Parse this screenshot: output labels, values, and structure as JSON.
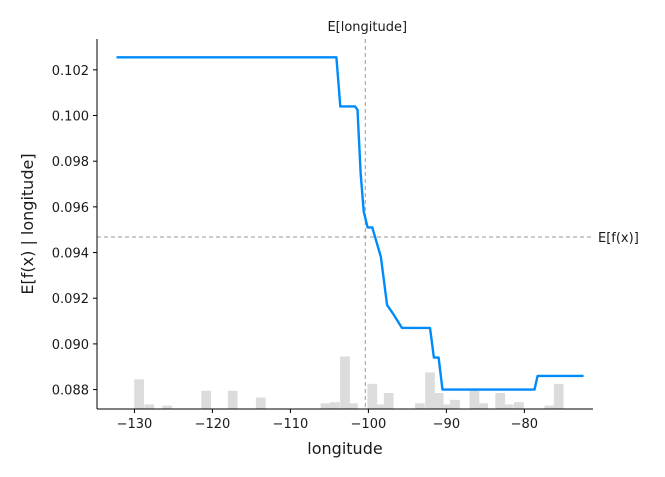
{
  "chart_data": {
    "type": "line",
    "xlabel": "longitude",
    "ylabel": "E[f(x) | longitude]",
    "xlim": [
      -134.8,
      -71.2
    ],
    "ylim": [
      0.08715,
      0.10335
    ],
    "xticks": [
      -130,
      -120,
      -110,
      -100,
      -90,
      -80
    ],
    "xtick_labels": [
      "−130",
      "−120",
      "−110",
      "−100",
      "−90",
      "−80"
    ],
    "yticks": [
      0.088,
      0.09,
      0.092,
      0.094,
      0.096,
      0.098,
      0.1,
      0.102
    ],
    "ytick_labels": [
      "0.088",
      "0.090",
      "0.092",
      "0.094",
      "0.096",
      "0.098",
      "0.100",
      "0.102"
    ],
    "series": [
      {
        "color": "#008bfb",
        "x": [
          -132.3,
          -104.1,
          -103.6,
          -101.7,
          -101.4,
          -101.0,
          -100.6,
          -100.1,
          -99.5,
          -98.4,
          -97.6,
          -96.8,
          -95.7,
          -92.1,
          -91.6,
          -91.0,
          -90.5,
          -78.7,
          -78.3,
          -72.4
        ],
        "y": [
          0.10255,
          0.10255,
          0.1004,
          0.1004,
          0.10025,
          0.0975,
          0.0958,
          0.0951,
          0.0951,
          0.0938,
          0.0917,
          0.0913,
          0.0907,
          0.0907,
          0.0894,
          0.0894,
          0.088,
          0.088,
          0.0886,
          0.0886
        ]
      }
    ],
    "expected_value": {
      "label": "E[f(x)]",
      "y": 0.09468
    },
    "expected_feature": {
      "label": "E[longitude]",
      "x": -100.4
    },
    "histogram": {
      "color": "#dcdcdc",
      "bin_width": 1.25,
      "bins": [
        {
          "x": -129.4,
          "h": 0.0013
        },
        {
          "x": -128.1,
          "h": 0.0002
        },
        {
          "x": -125.8,
          "h": 0.00015
        },
        {
          "x": -120.8,
          "h": 0.0008
        },
        {
          "x": -117.4,
          "h": 0.0008
        },
        {
          "x": -113.8,
          "h": 0.0005
        },
        {
          "x": -105.5,
          "h": 0.00025
        },
        {
          "x": -104.3,
          "h": 0.0003
        },
        {
          "x": -103.0,
          "h": 0.0023
        },
        {
          "x": -102.0,
          "h": 0.00025
        },
        {
          "x": -99.5,
          "h": 0.0011
        },
        {
          "x": -98.5,
          "h": 0.0002
        },
        {
          "x": -97.4,
          "h": 0.0007
        },
        {
          "x": -93.4,
          "h": 0.00025
        },
        {
          "x": -92.1,
          "h": 0.0016
        },
        {
          "x": -91.0,
          "h": 0.0007
        },
        {
          "x": -90.0,
          "h": 0.0002
        },
        {
          "x": -88.9,
          "h": 0.0004
        },
        {
          "x": -86.4,
          "h": 0.0009
        },
        {
          "x": -85.3,
          "h": 0.00025
        },
        {
          "x": -83.1,
          "h": 0.0007
        },
        {
          "x": -82.0,
          "h": 0.0002
        },
        {
          "x": -80.7,
          "h": 0.0003
        },
        {
          "x": -76.8,
          "h": 0.00015
        },
        {
          "x": -75.6,
          "h": 0.0011
        }
      ]
    },
    "grid": false,
    "legend": "none"
  }
}
